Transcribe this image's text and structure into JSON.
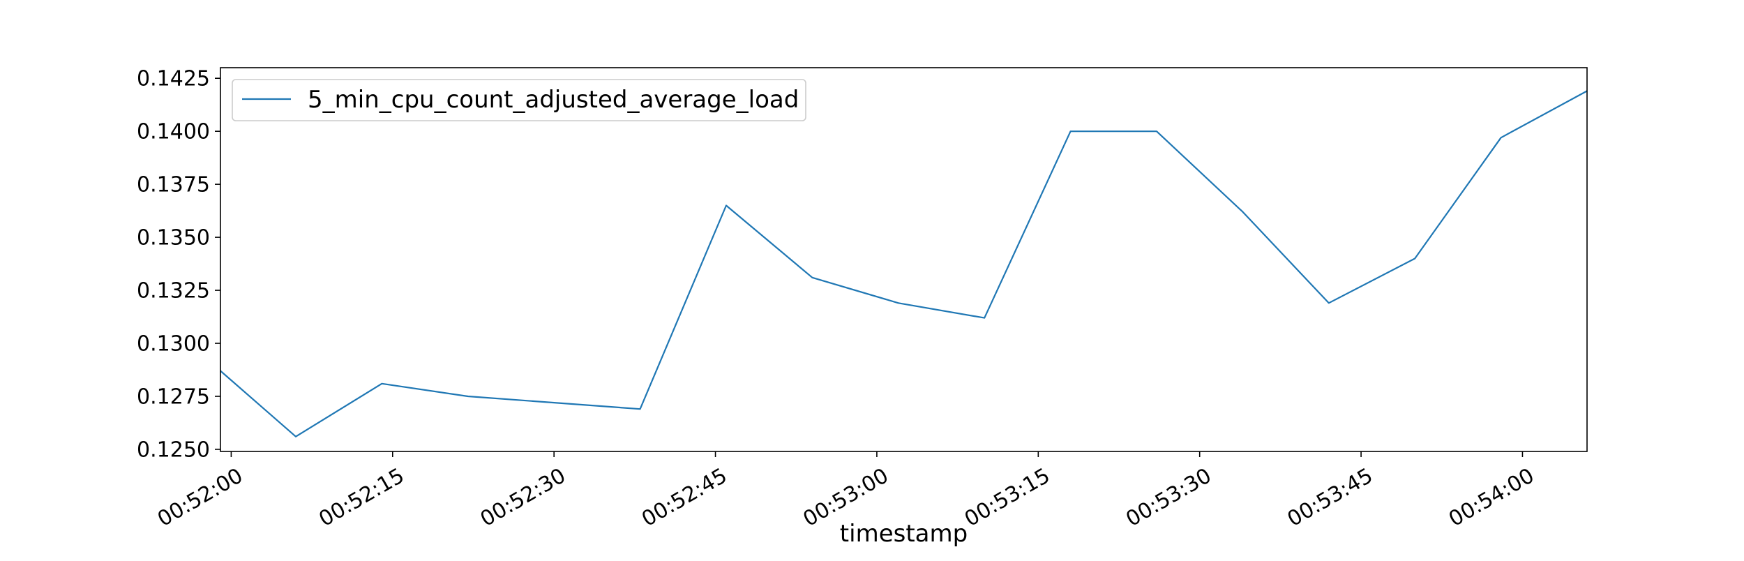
{
  "chart_data": {
    "type": "line",
    "xlabel": "timestamp",
    "ylabel": "",
    "x": [
      "00:51:59",
      "00:52:06",
      "00:52:14",
      "00:52:22",
      "00:52:38",
      "00:52:46",
      "00:52:54",
      "00:53:02",
      "00:53:10",
      "00:53:18",
      "00:53:26",
      "00:53:34",
      "00:53:42",
      "00:53:50",
      "00:53:58",
      "00:54:06"
    ],
    "series": [
      {
        "name": "5_min_cpu_count_adjusted_average_load",
        "color": "#1f77b4",
        "values": [
          0.1287,
          0.1256,
          0.1281,
          0.1275,
          0.1269,
          0.1365,
          0.1331,
          0.1319,
          0.1312,
          0.14,
          0.14,
          0.1362,
          0.1319,
          0.134,
          0.1397,
          0.1419
        ]
      }
    ],
    "xlim": [
      "00:51:59",
      "00:54:06"
    ],
    "ylim": [
      0.1249,
      0.143
    ],
    "x_ticks": [
      "00:52:00",
      "00:52:15",
      "00:52:30",
      "00:52:45",
      "00:53:00",
      "00:53:15",
      "00:53:30",
      "00:53:45",
      "00:54:00"
    ],
    "y_ticks": [
      "0.1250",
      "0.1275",
      "0.1300",
      "0.1325",
      "0.1350",
      "0.1375",
      "0.1400",
      "0.1425"
    ],
    "grid": false,
    "legend_position": "upper-left"
  }
}
